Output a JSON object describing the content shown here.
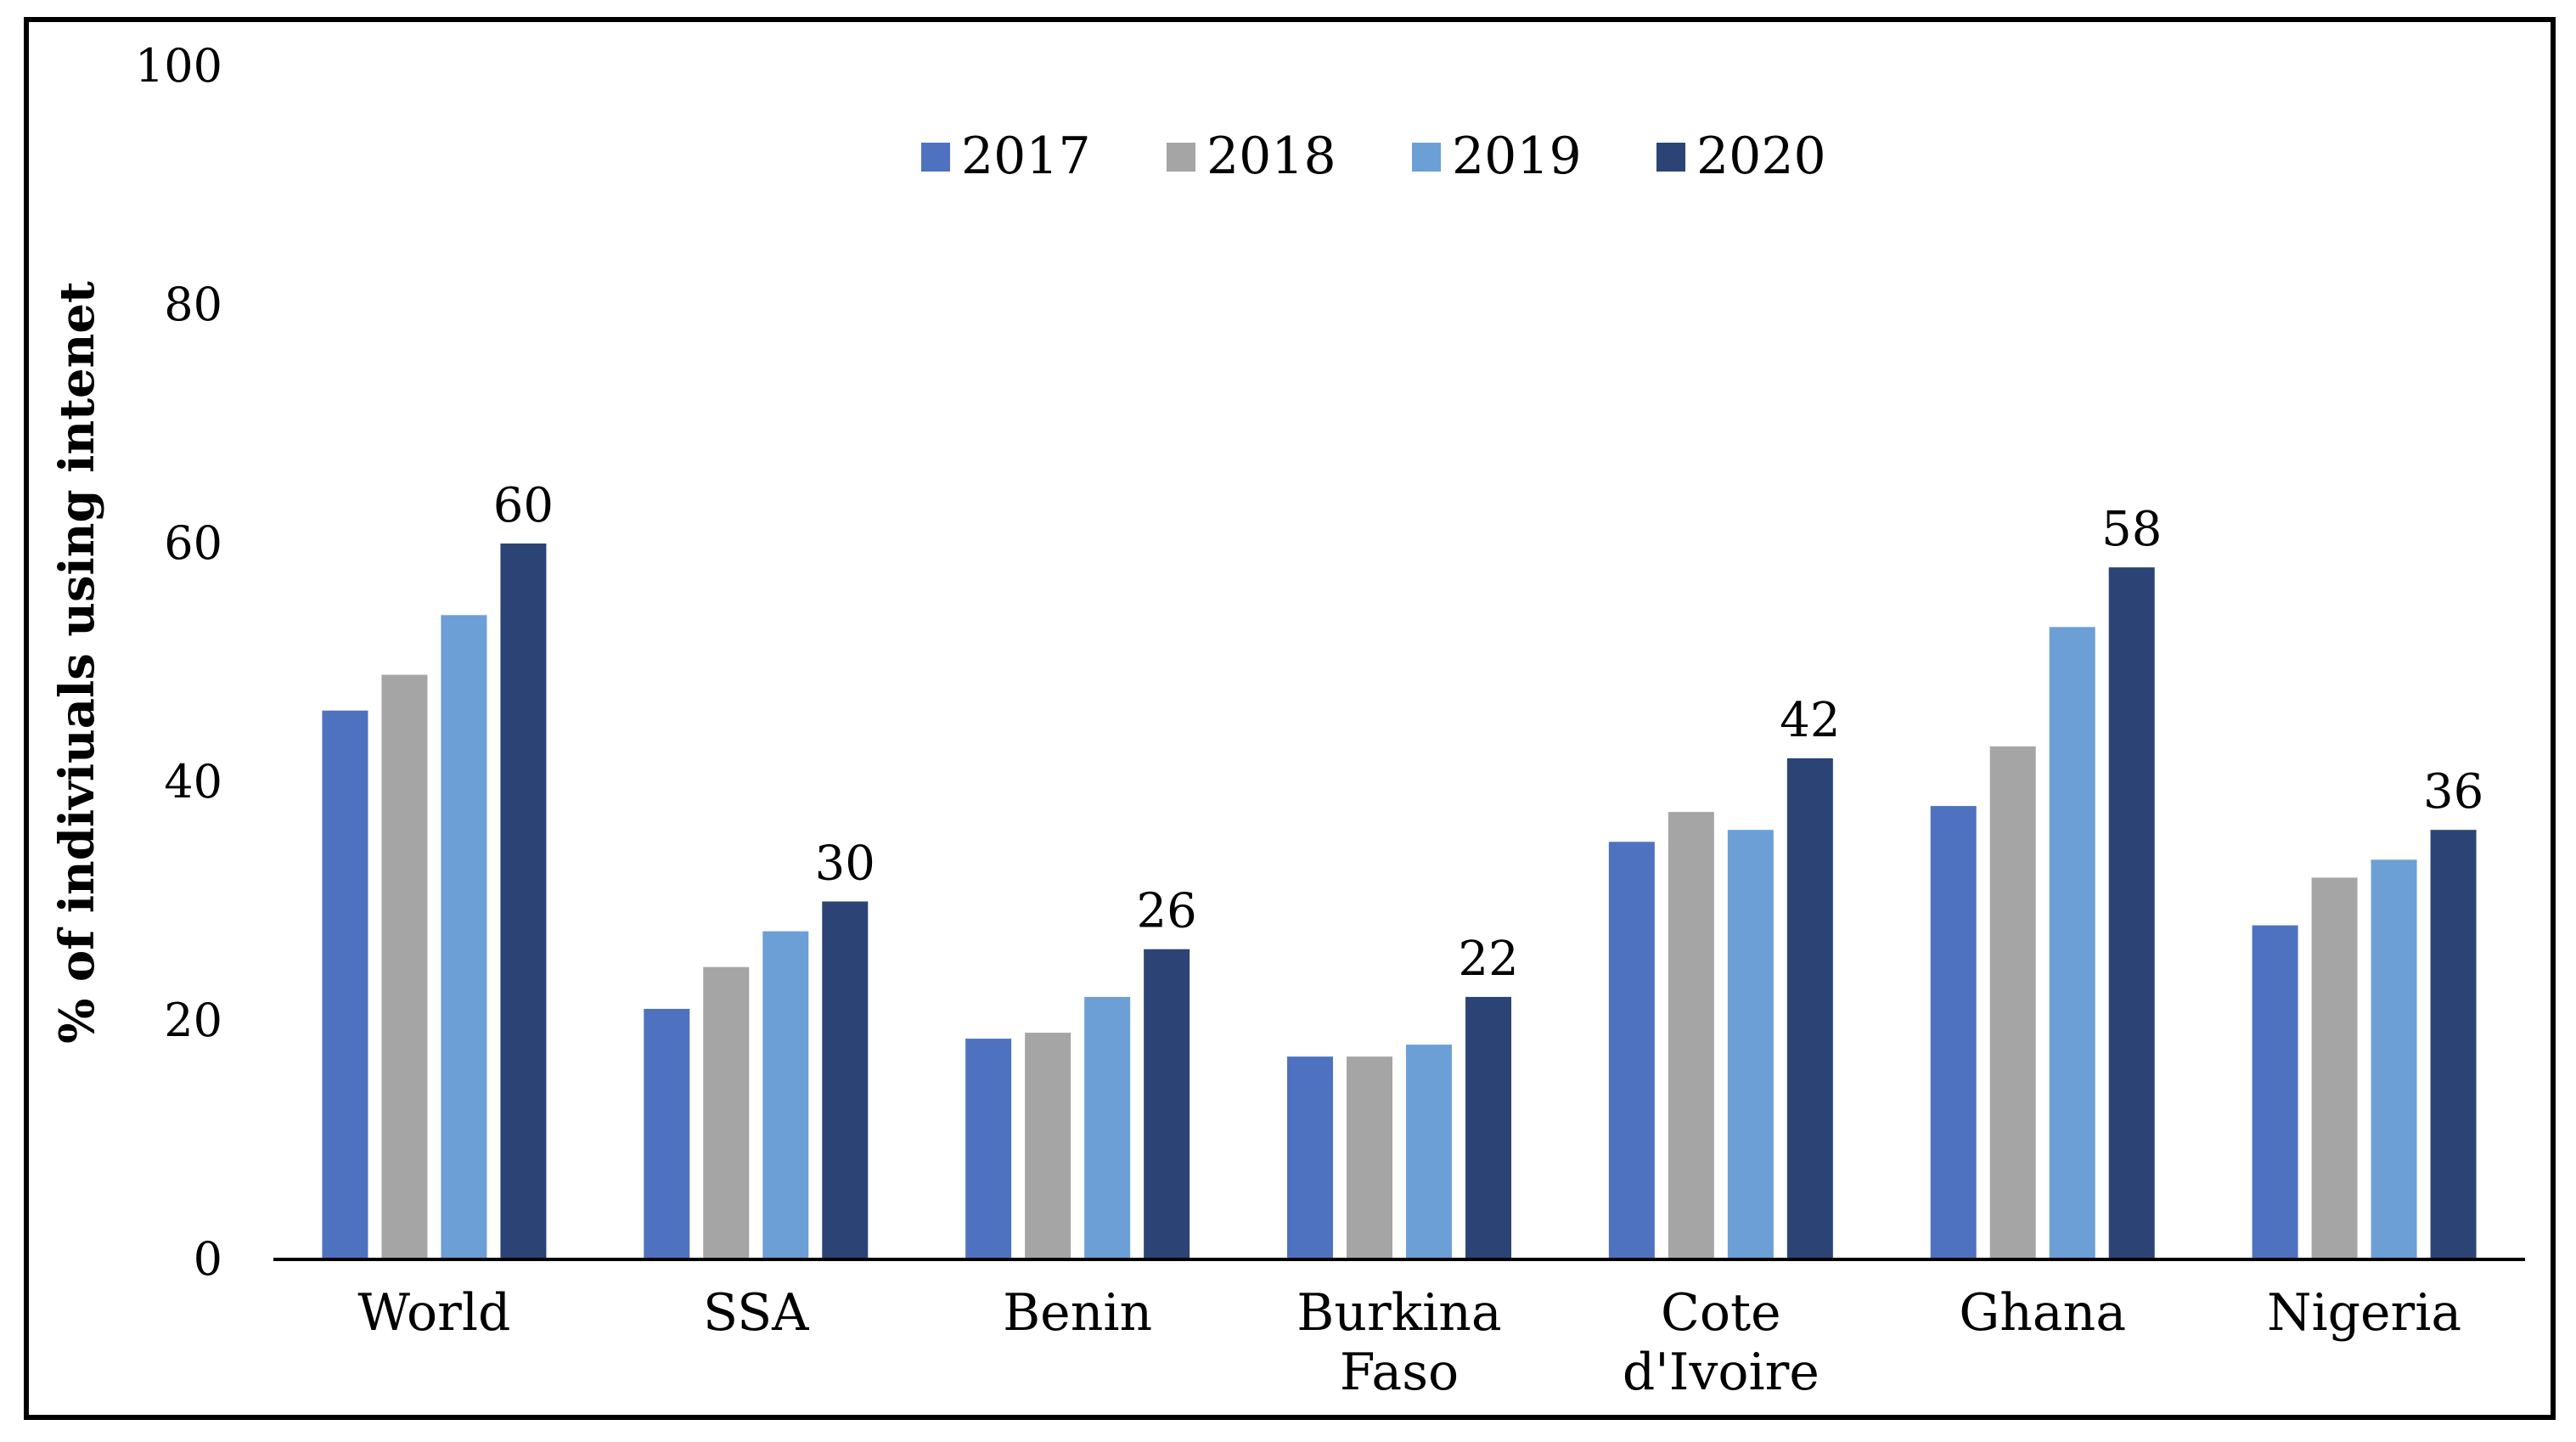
{
  "chart_data": {
    "type": "bar",
    "ylabel": "% of indiviuals using intenet",
    "xlabel": "",
    "ylim": [
      0,
      100
    ],
    "yticks": [
      0,
      20,
      40,
      60,
      80,
      100
    ],
    "grid": false,
    "legend_position": "top-center",
    "categories": [
      [
        "World"
      ],
      [
        "SSA"
      ],
      [
        "Benin"
      ],
      [
        "Burkina",
        "Faso"
      ],
      [
        "Cote",
        "d'Ivoire"
      ],
      [
        "Ghana"
      ],
      [
        "Nigeria"
      ]
    ],
    "series": [
      {
        "name": "2017",
        "color": "#4f72c0",
        "values": [
          46,
          21,
          18.5,
          17,
          35,
          38,
          28
        ]
      },
      {
        "name": "2018",
        "color": "#a5a5a5",
        "values": [
          49,
          24.5,
          19,
          17,
          37.5,
          43,
          32
        ]
      },
      {
        "name": "2019",
        "color": "#6b9fd6",
        "values": [
          54,
          27.5,
          22,
          18,
          36,
          53,
          33.5
        ]
      },
      {
        "name": "2020",
        "color": "#2c4475",
        "values": [
          60,
          30,
          26,
          22,
          42,
          58,
          36
        ]
      }
    ],
    "data_labels": {
      "series": "2020",
      "values": [
        "60",
        "30",
        "26",
        "22",
        "42",
        "58",
        "36"
      ]
    }
  }
}
